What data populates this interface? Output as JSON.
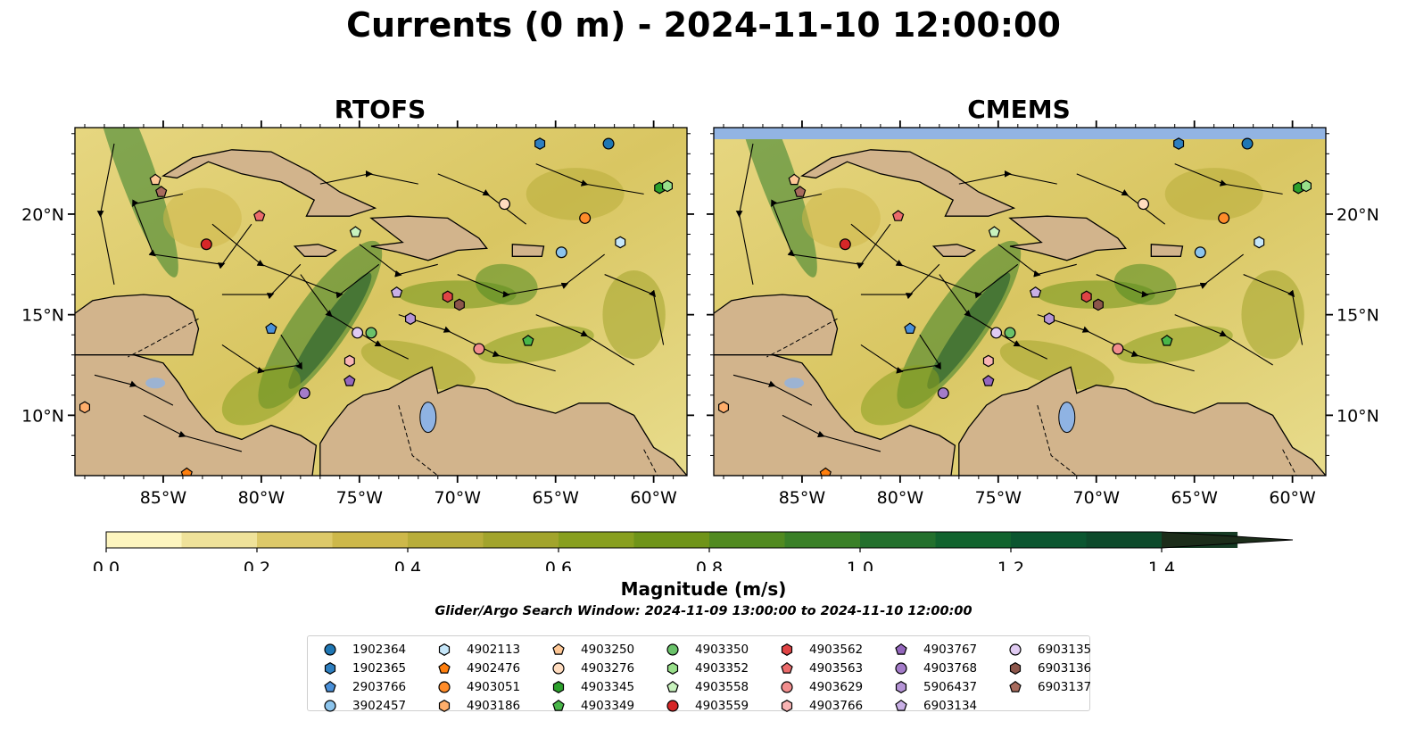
{
  "figure": {
    "suptitle": "Currents (0 m) - 2024-11-10 12:00:00",
    "colorbar_label": "Magnitude (m/s)",
    "search_window": "Glider/Argo Search Window: 2024-11-09 13:00:00 to 2024-11-10 12:00:00"
  },
  "panels": [
    {
      "title": "RTOFS",
      "id": "rtofs"
    },
    {
      "title": "CMEMS",
      "id": "cmems"
    }
  ],
  "map_extent": {
    "lon": [
      -89.5,
      -58.3
    ],
    "lat": [
      7.0,
      24.3
    ]
  },
  "x_ticks": [
    {
      "value": -85,
      "label": "85°W"
    },
    {
      "value": -80,
      "label": "80°W"
    },
    {
      "value": -75,
      "label": "75°W"
    },
    {
      "value": -70,
      "label": "70°W"
    },
    {
      "value": -65,
      "label": "65°W"
    },
    {
      "value": -60,
      "label": "60°W"
    }
  ],
  "y_ticks": [
    {
      "value": 20,
      "label": "20°N"
    },
    {
      "value": 15,
      "label": "15°N"
    },
    {
      "value": 10,
      "label": "10°N"
    }
  ],
  "colorbar": {
    "min": 0.0,
    "max": 1.5,
    "extend": "max",
    "ticks": [
      {
        "value": 0.0,
        "label": "0.0"
      },
      {
        "value": 0.2,
        "label": "0.2"
      },
      {
        "value": 0.4,
        "label": "0.4"
      },
      {
        "value": 0.6,
        "label": "0.6"
      },
      {
        "value": 0.8,
        "label": "0.8"
      },
      {
        "value": 1.0,
        "label": "1.0"
      },
      {
        "value": 1.2,
        "label": "1.2"
      },
      {
        "value": 1.4,
        "label": "1.4"
      }
    ],
    "colors": [
      "#fdf5bf",
      "#efe29a",
      "#ddc969",
      "#cdb84a",
      "#b8ad3a",
      "#a2a42c",
      "#889f1f",
      "#6f9419",
      "#518a20",
      "#3a8027",
      "#23702d",
      "#11632e",
      "#0b5630",
      "#0d4a2b",
      "#163b24",
      "#1c2d1a"
    ]
  },
  "colors": {
    "land": "#d2b48c",
    "lake": "#8fb3e3",
    "strip": "#92b4e3",
    "streamline": "#000000"
  },
  "legend": {
    "columns": [
      [
        {
          "label": "1902364",
          "marker": "circle",
          "color": "#1f77b4"
        },
        {
          "label": "1902365",
          "marker": "hexagon",
          "color": "#2e7fc0"
        },
        {
          "label": "2903766",
          "marker": "pentagon",
          "color": "#4a90d9"
        },
        {
          "label": "3902457",
          "marker": "circle",
          "color": "#8cc4ec"
        }
      ],
      [
        {
          "label": "4902113",
          "marker": "hexagon",
          "color": "#c6e7fa"
        },
        {
          "label": "4902476",
          "marker": "pentagon",
          "color": "#ff7f0e"
        },
        {
          "label": "4903051",
          "marker": "circle",
          "color": "#ff8c2a"
        },
        {
          "label": "4903186",
          "marker": "hexagon",
          "color": "#ffae6b"
        }
      ],
      [
        {
          "label": "4903250",
          "marker": "pentagon",
          "color": "#ffc896"
        },
        {
          "label": "4903276",
          "marker": "circle",
          "color": "#ffdcbf"
        },
        {
          "label": "4903345",
          "marker": "hexagon",
          "color": "#2ca02c"
        },
        {
          "label": "4903349",
          "marker": "pentagon",
          "color": "#49b649"
        }
      ],
      [
        {
          "label": "4903350",
          "marker": "circle",
          "color": "#6ac26a"
        },
        {
          "label": "4903352",
          "marker": "hexagon",
          "color": "#98df8a"
        },
        {
          "label": "4903558",
          "marker": "pentagon",
          "color": "#c8f2bd"
        },
        {
          "label": "4903559",
          "marker": "circle",
          "color": "#d62728"
        }
      ],
      [
        {
          "label": "4903562",
          "marker": "hexagon",
          "color": "#e04445"
        },
        {
          "label": "4903563",
          "marker": "pentagon",
          "color": "#eb6b6b"
        },
        {
          "label": "4903629",
          "marker": "circle",
          "color": "#f28e8e"
        },
        {
          "label": "4903766",
          "marker": "hexagon",
          "color": "#f8b4b4"
        }
      ],
      [
        {
          "label": "4903767",
          "marker": "pentagon",
          "color": "#9467bd"
        },
        {
          "label": "4903768",
          "marker": "circle",
          "color": "#a47cc9"
        },
        {
          "label": "5906437",
          "marker": "hexagon",
          "color": "#b594d6"
        },
        {
          "label": "6903134",
          "marker": "pentagon",
          "color": "#c9b0e6"
        }
      ],
      [
        {
          "label": "6903135",
          "marker": "circle",
          "color": "#e0cbf2"
        },
        {
          "label": "6903136",
          "marker": "hexagon",
          "color": "#8c564b"
        },
        {
          "label": "6903137",
          "marker": "pentagon",
          "color": "#a86b5d"
        }
      ]
    ]
  },
  "floats": [
    {
      "id": "1902364",
      "lon": -62.3,
      "lat": 23.5
    },
    {
      "id": "1902365",
      "lon": -65.8,
      "lat": 23.5
    },
    {
      "id": "2903766",
      "lon": -79.5,
      "lat": 14.3
    },
    {
      "id": "3902457",
      "lon": -64.7,
      "lat": 18.1
    },
    {
      "id": "4902113",
      "lon": -61.7,
      "lat": 18.6
    },
    {
      "id": "4902476",
      "lon": -83.8,
      "lat": 7.1
    },
    {
      "id": "4903051",
      "lon": -63.5,
      "lat": 19.8
    },
    {
      "id": "4903186",
      "lon": -89.0,
      "lat": 10.4
    },
    {
      "id": "4903250",
      "lon": -85.4,
      "lat": 21.7
    },
    {
      "id": "4903276",
      "lon": -67.6,
      "lat": 20.5
    },
    {
      "id": "4903345",
      "lon": -59.7,
      "lat": 21.3
    },
    {
      "id": "4903349",
      "lon": -66.4,
      "lat": 13.7
    },
    {
      "id": "4903350",
      "lon": -74.4,
      "lat": 14.1
    },
    {
      "id": "4903352",
      "lon": -59.3,
      "lat": 21.4
    },
    {
      "id": "4903558",
      "lon": -75.2,
      "lat": 19.1
    },
    {
      "id": "4903559",
      "lon": -82.8,
      "lat": 18.5
    },
    {
      "id": "4903562",
      "lon": -70.5,
      "lat": 15.9
    },
    {
      "id": "4903563",
      "lon": -80.1,
      "lat": 19.9
    },
    {
      "id": "4903629",
      "lon": -68.9,
      "lat": 13.3
    },
    {
      "id": "4903766",
      "lon": -75.5,
      "lat": 12.7
    },
    {
      "id": "4903767",
      "lon": -75.5,
      "lat": 11.7
    },
    {
      "id": "4903768",
      "lon": -77.8,
      "lat": 11.1
    },
    {
      "id": "5906437",
      "lon": -72.4,
      "lat": 14.8
    },
    {
      "id": "6903134",
      "lon": -73.1,
      "lat": 16.1
    },
    {
      "id": "6903135",
      "lon": -75.1,
      "lat": 14.1
    },
    {
      "id": "6903136",
      "lon": -69.9,
      "lat": 15.5
    },
    {
      "id": "6903137",
      "lon": -85.1,
      "lat": 21.1
    }
  ]
}
